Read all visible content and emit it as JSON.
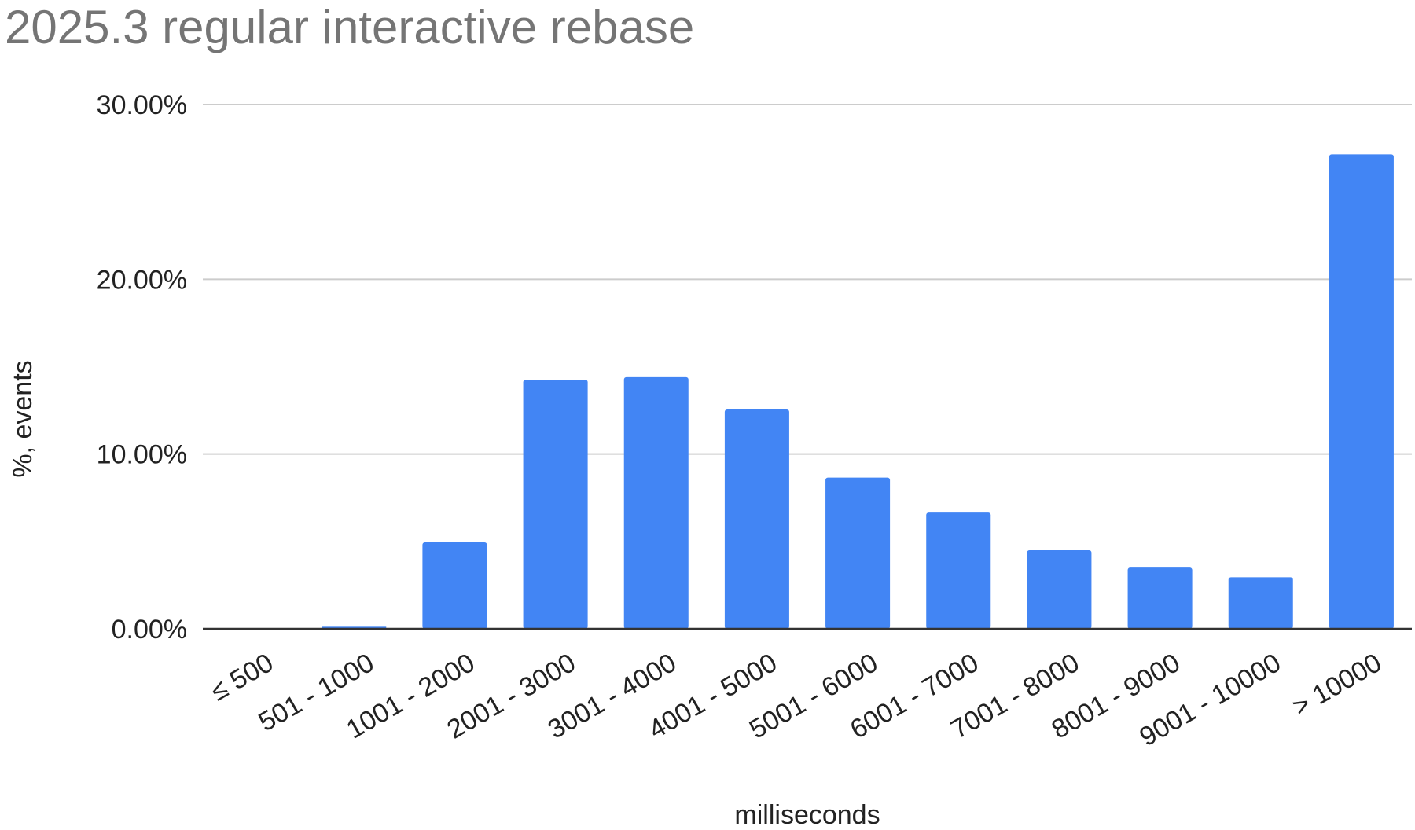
{
  "chart_data": {
    "type": "bar",
    "title": "2025.3 regular interactive rebase",
    "xlabel": "milliseconds",
    "ylabel": "%, events",
    "categories": [
      "≤ 500",
      "501 - 1000",
      "1001 - 2000",
      "2001 - 3000",
      "3001 - 4000",
      "4001 - 5000",
      "5001 - 6000",
      "6001 - 7000",
      "7001 - 8000",
      "8001 - 9000",
      "9001 - 10000",
      "> 10000"
    ],
    "series": [
      {
        "values": [
          0.0,
          0.12,
          4.95,
          14.25,
          14.4,
          12.55,
          8.65,
          6.65,
          4.5,
          3.5,
          2.95,
          27.15
        ]
      }
    ],
    "ylim": [
      0,
      30
    ],
    "yticks": [
      {
        "value": 0,
        "label": "0.00%"
      },
      {
        "value": 10,
        "label": "10.00%"
      },
      {
        "value": 20,
        "label": "20.00%"
      },
      {
        "value": 30,
        "label": "30.00%"
      }
    ],
    "grid": true,
    "legend": "none",
    "bar_color": "#4285f4"
  }
}
